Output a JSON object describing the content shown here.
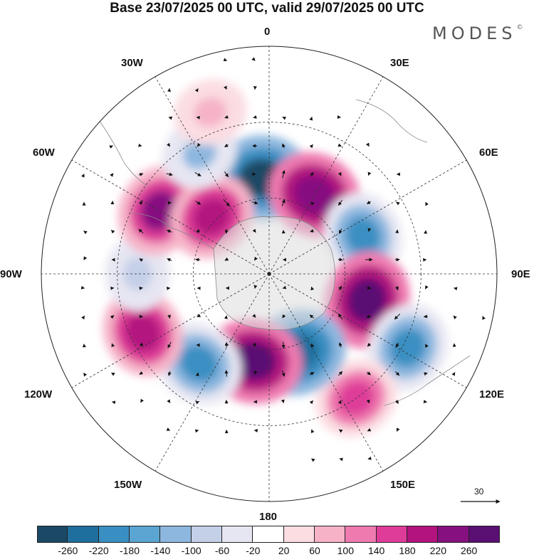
{
  "title": "Base 23/07/2025 00 UTC, valid 29/07/2025 00 UTC",
  "brand": "MODES",
  "brand_mark": "©",
  "longitude_labels": {
    "top": "0",
    "top_right": "30E",
    "right_upper": "60E",
    "right": "90E",
    "right_lower": "120E",
    "bottom_right": "150E",
    "bottom": "180",
    "bottom_left": "150W",
    "left_lower": "120W",
    "left": "90W",
    "left_upper": "60W",
    "top_left": "30W"
  },
  "reference_vector": {
    "label": "30",
    "icon": "arrow-right-icon"
  },
  "colorbar": {
    "colors": [
      "#1b4965",
      "#1f6f9e",
      "#3a8fc2",
      "#5aa5d1",
      "#8db7df",
      "#c4cfe8",
      "#e6e6f2",
      "#ffffff",
      "#fbdde2",
      "#f6b3c8",
      "#ef7ab0",
      "#de3c98",
      "#b3137f",
      "#861080",
      "#5a0f73"
    ],
    "ticks": [
      "-260",
      "-220",
      "-180",
      "-140",
      "-100",
      "-60",
      "-20",
      "20",
      "60",
      "100",
      "140",
      "180",
      "220",
      "260"
    ]
  },
  "anomalies": [
    {
      "name": "anomaly-blue-north",
      "lon": -5,
      "colat": 38,
      "value": -270
    },
    {
      "name": "anomaly-pink-north-east",
      "lon": 30,
      "colat": 36,
      "value": 240
    },
    {
      "name": "anomaly-blue-east",
      "lon": 68,
      "colat": 40,
      "value": -190
    },
    {
      "name": "anomaly-pink-east",
      "lon": 105,
      "colat": 40,
      "value": 260
    },
    {
      "name": "anomaly-blue-south-east",
      "lon": 118,
      "colat": 62,
      "value": -200
    },
    {
      "name": "anomaly-pink-south-east",
      "lon": 145,
      "colat": 60,
      "value": 170
    },
    {
      "name": "anomaly-blue-south",
      "lon": 160,
      "colat": 33,
      "value": -260
    },
    {
      "name": "anomaly-pink-south",
      "lon": 190,
      "colat": 35,
      "value": 260
    },
    {
      "name": "anomaly-blue-south-west",
      "lon": 218,
      "colat": 45,
      "value": -200
    },
    {
      "name": "anomaly-pink-west",
      "lon": 245,
      "colat": 55,
      "value": 200
    },
    {
      "name": "anomaly-blue-west",
      "lon": 270,
      "colat": 52,
      "value": -90
    },
    {
      "name": "anomaly-pink-north-west-outer",
      "lon": 300,
      "colat": 50,
      "value": 220
    },
    {
      "name": "anomaly-pink-north-west-inner",
      "lon": 315,
      "colat": 32,
      "value": 200
    },
    {
      "name": "anomaly-blue-north-west",
      "lon": 330,
      "colat": 55,
      "value": -110
    },
    {
      "name": "anomaly-pink-north-outer",
      "lon": 340,
      "colat": 68,
      "value": 90
    }
  ]
}
